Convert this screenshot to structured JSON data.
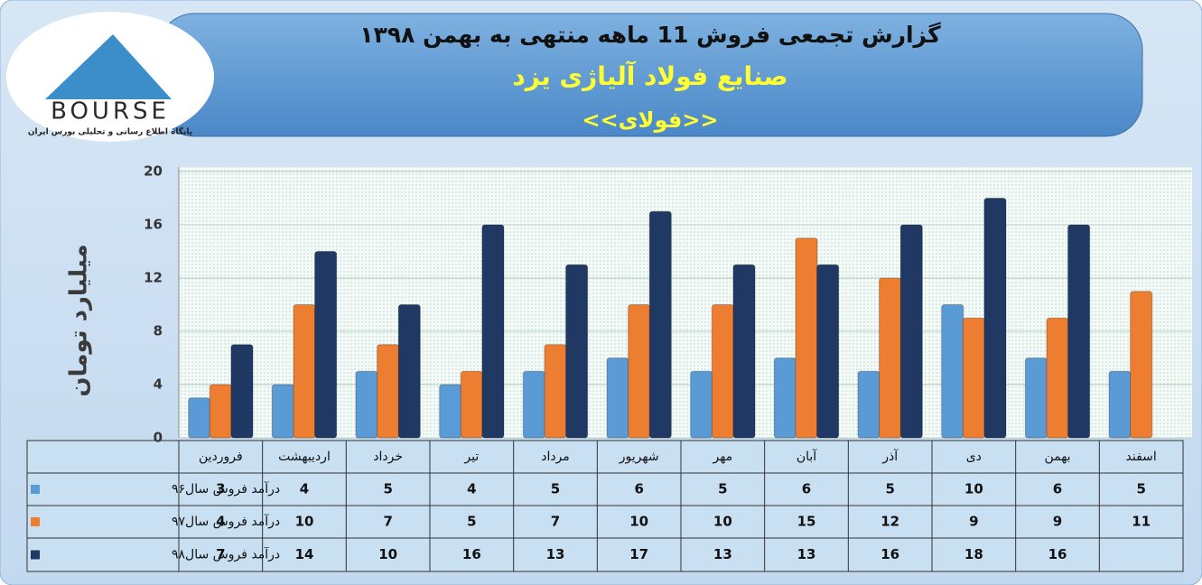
{
  "logo": {
    "name": "BOURSE",
    "tagline": "پایگاه اطلاع رسانی و تحلیلی بورس ایران"
  },
  "chart_data": {
    "type": "bar",
    "title": "گزارش تجمعی فروش 11 ماهه منتهی به بهمن ۱۳۹۸",
    "subtitle": "صنایع فولاد آلیاژی یزد",
    "symbol": "<<فولای>>",
    "y_label": "میلیارد تومان",
    "categories": [
      "فروردین",
      "اردیبهشت",
      "خرداد",
      "تیر",
      "مرداد",
      "شهریور",
      "مهر",
      "آبان",
      "آذر",
      "دی",
      "بهمن",
      "اسفند"
    ],
    "series": [
      {
        "name": "درآمد فروش سال۹۶",
        "color": "#5b9bd5",
        "values": [
          3,
          4,
          5,
          4,
          5,
          6,
          5,
          6,
          5,
          10,
          6,
          5
        ]
      },
      {
        "name": "درآمد فروش سال۹۷",
        "color": "#ed7d31",
        "values": [
          4,
          10,
          7,
          5,
          7,
          10,
          10,
          15,
          12,
          9,
          9,
          11
        ]
      },
      {
        "name": "درآمد فروش سال۹۸",
        "color": "#1f3864",
        "values": [
          7,
          14,
          10,
          16,
          13,
          17,
          13,
          13,
          16,
          18,
          16,
          null
        ]
      }
    ],
    "ylim": [
      0,
      20
    ],
    "yticks": [
      0,
      4,
      8,
      12,
      16,
      20
    ],
    "grid": true
  }
}
